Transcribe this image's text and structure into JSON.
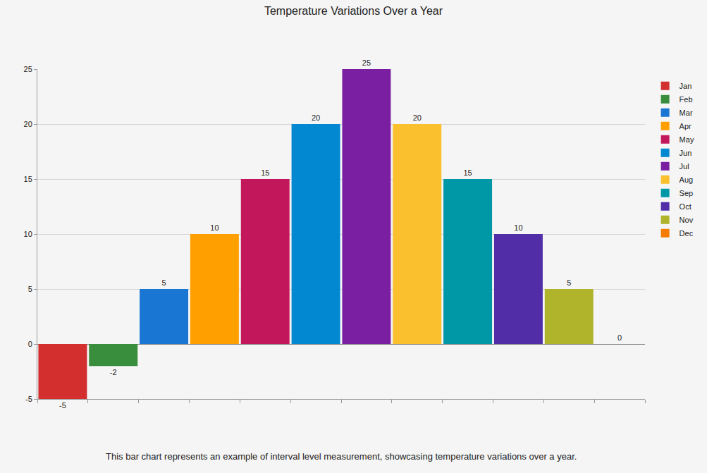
{
  "chart_data": {
    "type": "bar",
    "title": "Temperature Variations Over a Year",
    "categories": [
      "Jan",
      "Feb",
      "Mar",
      "Apr",
      "May",
      "Jun",
      "Jul",
      "Aug",
      "Sep",
      "Oct",
      "Nov",
      "Dec"
    ],
    "values": [
      -5,
      -2,
      5,
      10,
      15,
      20,
      25,
      20,
      15,
      10,
      5,
      0
    ],
    "colors": [
      "#d32f2f",
      "#388e3c",
      "#1976d2",
      "#ffa000",
      "#c2185b",
      "#0288d1",
      "#7b1fa2",
      "#fbc02d",
      "#0097a7",
      "#512da8",
      "#afb42b",
      "#f57c00"
    ],
    "ylim": [
      -5,
      25
    ],
    "yticks": [
      -5,
      0,
      5,
      10,
      15,
      20,
      25
    ],
    "grid": true,
    "data_labels": true,
    "legend": "right",
    "tick_labels": "y",
    "annotations": [
      "This bar chart represents an example of interval level measurement, showcasing temperature variations over a year."
    ]
  }
}
